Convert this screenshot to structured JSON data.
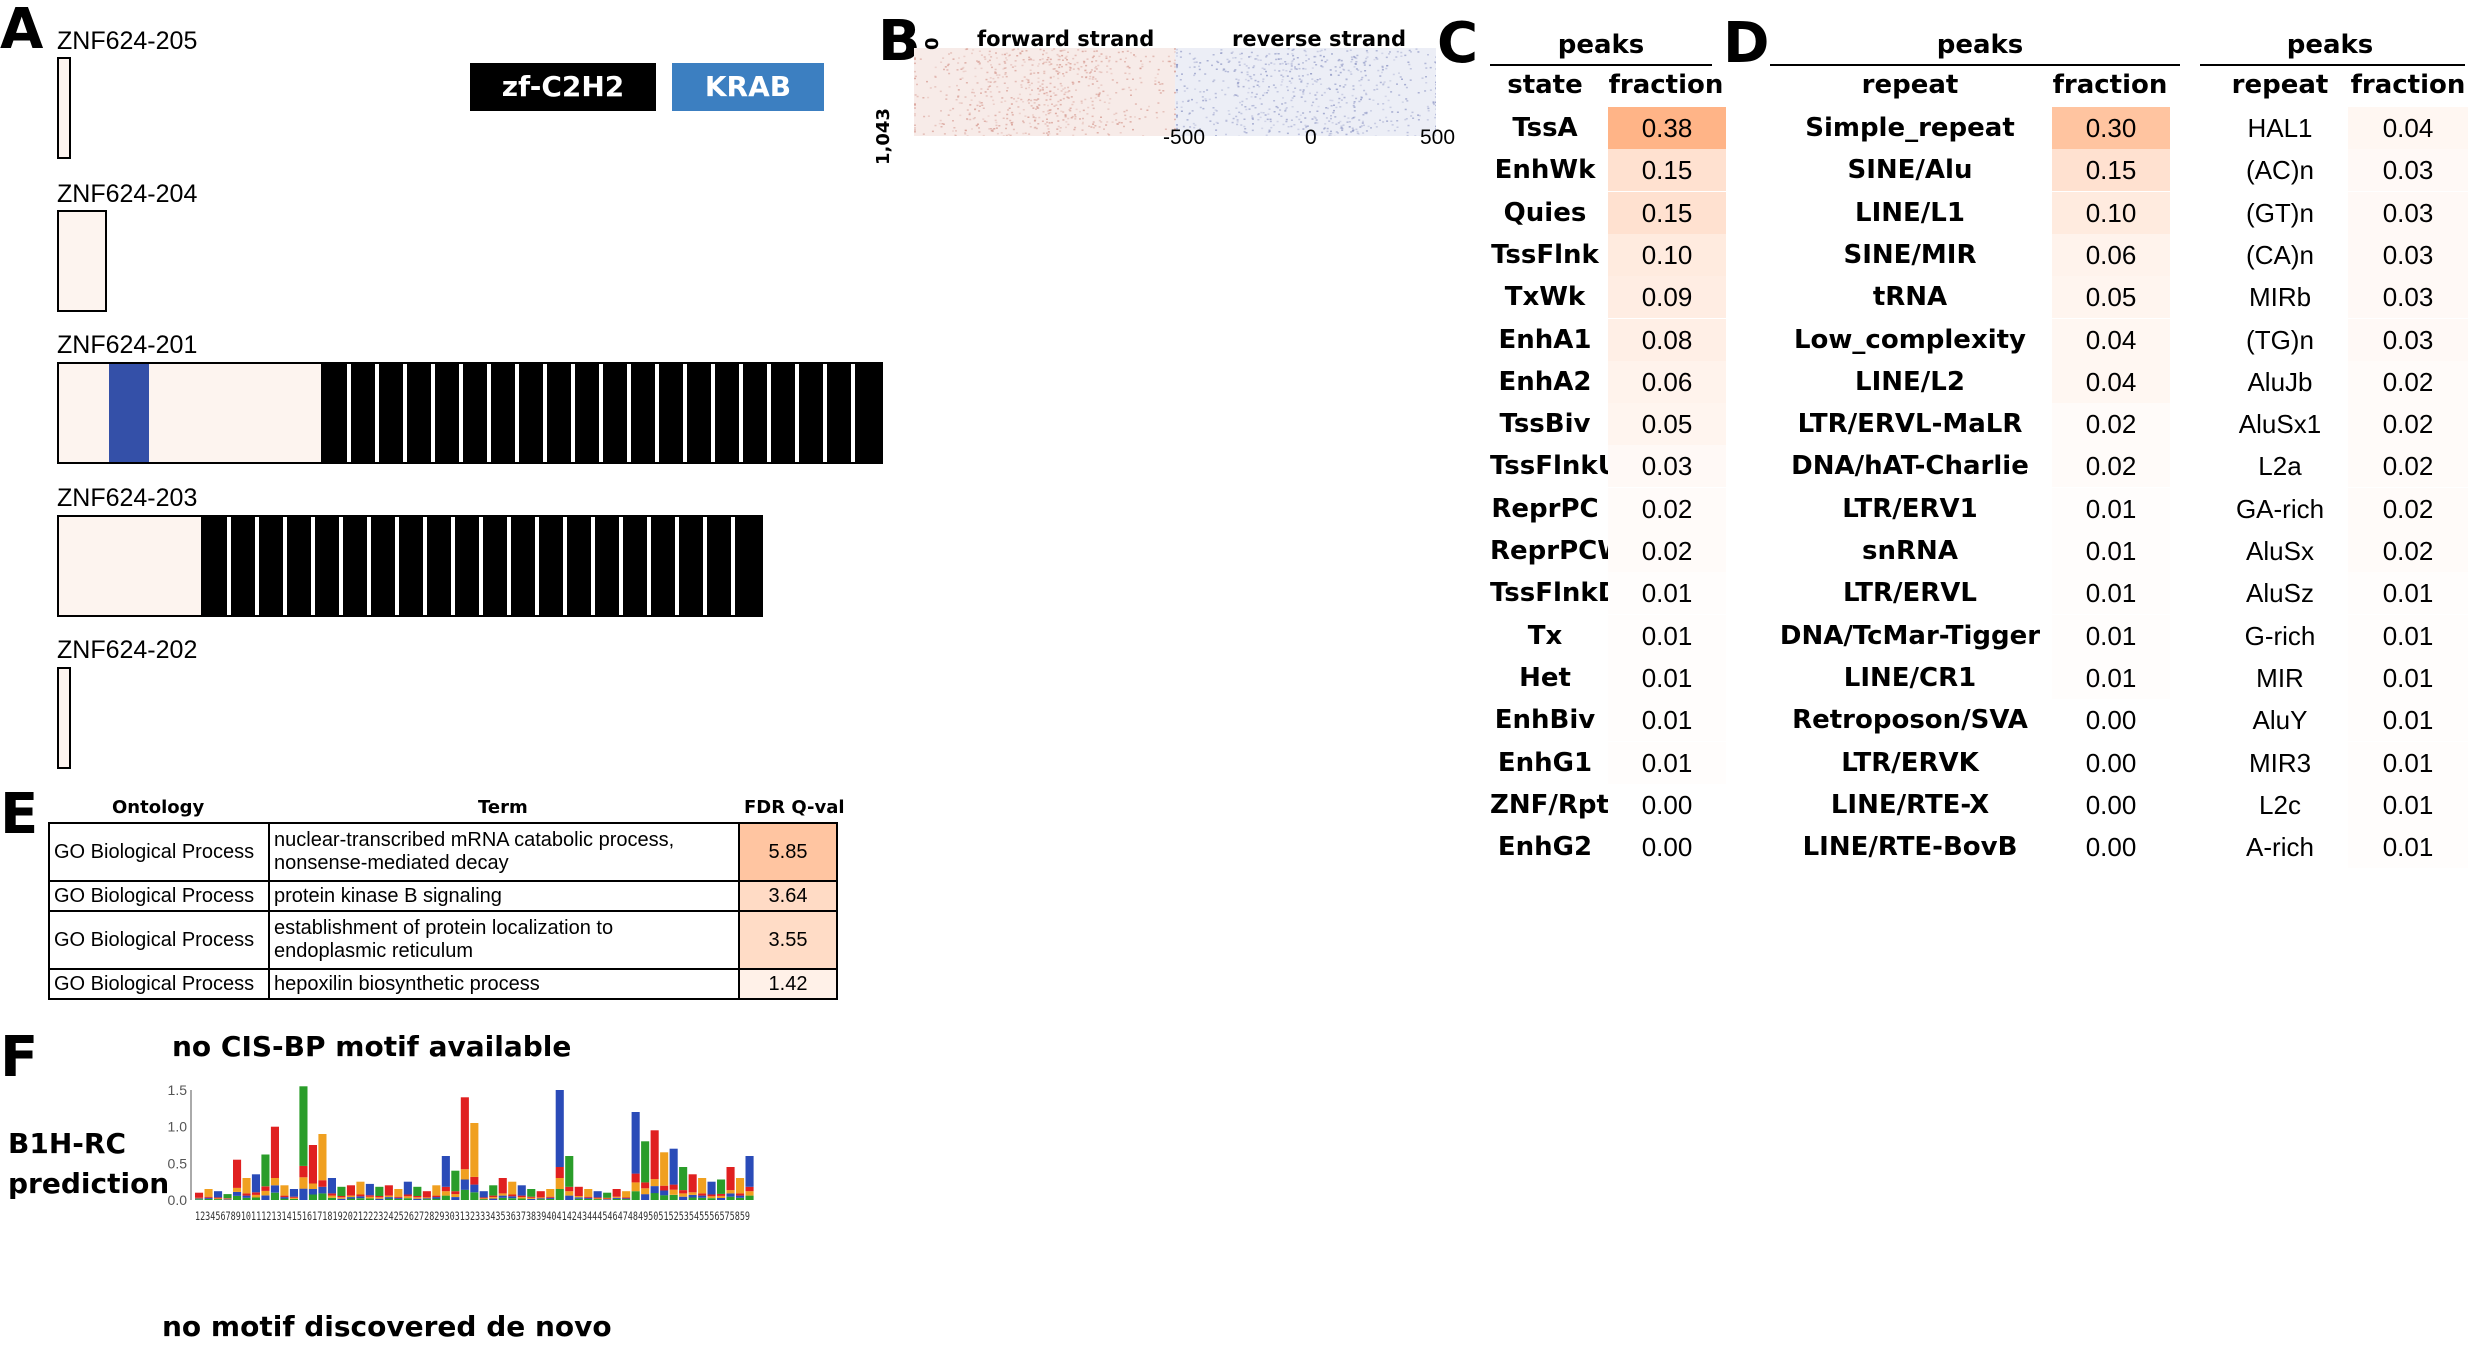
{
  "panels": {
    "A": "A",
    "B": "B",
    "C": "C",
    "D": "D",
    "E": "E",
    "F": "F"
  },
  "panel_a": {
    "isoforms": [
      "ZNF624-205",
      "ZNF624-204",
      "ZNF624-201",
      "ZNF624-203",
      "ZNF624-202"
    ],
    "legend": {
      "zf": "zf-C2H2",
      "krab": "KRAB"
    },
    "colors": {
      "zf": "#000000",
      "krab": "#3450a8",
      "body": "#fdf4ef",
      "krab_legend": "#3c7fc1"
    }
  },
  "panel_b": {
    "forward_label": "forward strand",
    "reverse_label": "reverse strand",
    "y_top": "0",
    "y_bottom": "1,043",
    "x_ticks": [
      "-500",
      "0",
      "500"
    ],
    "colors": {
      "forward": "#d4968c",
      "reverse": "#8e96c4"
    }
  },
  "panel_c": {
    "header": "peaks",
    "col_state": "state",
    "col_fraction": "fraction",
    "rows": [
      {
        "state": "TssA",
        "fraction": "0.38"
      },
      {
        "state": "EnhWk",
        "fraction": "0.15"
      },
      {
        "state": "Quies",
        "fraction": "0.15"
      },
      {
        "state": "TssFlnk",
        "fraction": "0.10"
      },
      {
        "state": "TxWk",
        "fraction": "0.09"
      },
      {
        "state": "EnhA1",
        "fraction": "0.08"
      },
      {
        "state": "EnhA2",
        "fraction": "0.06"
      },
      {
        "state": "TssBiv",
        "fraction": "0.05"
      },
      {
        "state": "TssFlnkU",
        "fraction": "0.03"
      },
      {
        "state": "ReprPC",
        "fraction": "0.02"
      },
      {
        "state": "ReprPCWk",
        "fraction": "0.02"
      },
      {
        "state": "TssFlnkD",
        "fraction": "0.01"
      },
      {
        "state": "Tx",
        "fraction": "0.01"
      },
      {
        "state": "Het",
        "fraction": "0.01"
      },
      {
        "state": "EnhBiv",
        "fraction": "0.01"
      },
      {
        "state": "EnhG1",
        "fraction": "0.01"
      },
      {
        "state": "ZNF/Rpts",
        "fraction": "0.00"
      },
      {
        "state": "EnhG2",
        "fraction": "0.00"
      }
    ]
  },
  "panel_d": {
    "header_left": "peaks",
    "header_right": "peaks",
    "col_repeat": "repeat",
    "col_fraction": "fraction",
    "left_rows": [
      {
        "repeat": "Simple_repeat",
        "fraction": "0.30"
      },
      {
        "repeat": "SINE/Alu",
        "fraction": "0.15"
      },
      {
        "repeat": "LINE/L1",
        "fraction": "0.10"
      },
      {
        "repeat": "SINE/MIR",
        "fraction": "0.06"
      },
      {
        "repeat": "tRNA",
        "fraction": "0.05"
      },
      {
        "repeat": "Low_complexity",
        "fraction": "0.04"
      },
      {
        "repeat": "LINE/L2",
        "fraction": "0.04"
      },
      {
        "repeat": "LTR/ERVL-MaLR",
        "fraction": "0.02"
      },
      {
        "repeat": "DNA/hAT-Charlie",
        "fraction": "0.02"
      },
      {
        "repeat": "LTR/ERV1",
        "fraction": "0.01"
      },
      {
        "repeat": "snRNA",
        "fraction": "0.01"
      },
      {
        "repeat": "LTR/ERVL",
        "fraction": "0.01"
      },
      {
        "repeat": "DNA/TcMar-Tigger",
        "fraction": "0.01"
      },
      {
        "repeat": "LINE/CR1",
        "fraction": "0.01"
      },
      {
        "repeat": "Retroposon/SVA",
        "fraction": "0.00"
      },
      {
        "repeat": "LTR/ERVK",
        "fraction": "0.00"
      },
      {
        "repeat": "LINE/RTE-X",
        "fraction": "0.00"
      },
      {
        "repeat": "LINE/RTE-BovB",
        "fraction": "0.00"
      }
    ],
    "right_rows": [
      {
        "repeat": "HAL1",
        "fraction": "0.04"
      },
      {
        "repeat": "(AC)n",
        "fraction": "0.03"
      },
      {
        "repeat": "(GT)n",
        "fraction": "0.03"
      },
      {
        "repeat": "(CA)n",
        "fraction": "0.03"
      },
      {
        "repeat": "MIRb",
        "fraction": "0.03"
      },
      {
        "repeat": "(TG)n",
        "fraction": "0.03"
      },
      {
        "repeat": "AluJb",
        "fraction": "0.02"
      },
      {
        "repeat": "AluSx1",
        "fraction": "0.02"
      },
      {
        "repeat": "L2a",
        "fraction": "0.02"
      },
      {
        "repeat": "GA-rich",
        "fraction": "0.02"
      },
      {
        "repeat": "AluSx",
        "fraction": "0.02"
      },
      {
        "repeat": "AluSz",
        "fraction": "0.01"
      },
      {
        "repeat": "G-rich",
        "fraction": "0.01"
      },
      {
        "repeat": "MIR",
        "fraction": "0.01"
      },
      {
        "repeat": "AluY",
        "fraction": "0.01"
      },
      {
        "repeat": "MIR3",
        "fraction": "0.01"
      },
      {
        "repeat": "L2c",
        "fraction": "0.01"
      },
      {
        "repeat": "A-rich",
        "fraction": "0.01"
      }
    ]
  },
  "panel_e": {
    "col_ontology": "Ontology",
    "col_term": "Term",
    "col_fdr": "FDR Q-val",
    "rows": [
      {
        "ontology": "GO Biological Process",
        "term_line1": "nuclear-transcribed mRNA catabolic process,",
        "term_line2": "nonsense-mediated decay",
        "fdr": "5.85"
      },
      {
        "ontology": "GO Biological Process",
        "term_line1": "protein kinase B signaling",
        "term_line2": "",
        "fdr": "3.64"
      },
      {
        "ontology": "GO Biological Process",
        "term_line1": "establishment of protein localization to",
        "term_line2": "endoplasmic reticulum",
        "fdr": "3.55"
      },
      {
        "ontology": "GO Biological Process",
        "term_line1": "hepoxilin biosynthetic process",
        "term_line2": "",
        "fdr": "1.42"
      }
    ]
  },
  "panel_f": {
    "cisbp": "no CIS-BP motif available",
    "b1h_line1": "B1H-RC",
    "b1h_line2": "prediction",
    "denovo": "no motif discovered de novo",
    "y_ticks": [
      "0.0",
      "0.5",
      "1.0",
      "1.5"
    ],
    "y_max": 1.5,
    "x_numbers": "1234567891011121314151617181920212223242526272829303132333435363738394041424344454647484950515253545556575859",
    "positions": [
      0.1,
      0.15,
      0.12,
      0.08,
      0.55,
      0.3,
      0.35,
      0.62,
      1.0,
      0.2,
      0.15,
      1.55,
      0.75,
      0.9,
      0.3,
      0.18,
      0.2,
      0.25,
      0.22,
      0.18,
      0.2,
      0.15,
      0.25,
      0.18,
      0.12,
      0.2,
      0.6,
      0.4,
      1.4,
      1.05,
      0.12,
      0.2,
      0.3,
      0.25,
      0.2,
      0.15,
      0.12,
      0.15,
      1.5,
      0.6,
      0.18,
      0.15,
      0.12,
      0.1,
      0.15,
      0.12,
      1.2,
      0.8,
      0.95,
      0.65,
      0.7,
      0.45,
      0.35,
      0.3,
      0.25,
      0.28,
      0.45,
      0.3,
      0.6
    ],
    "base_colors": {
      "A": "#2a9d2a",
      "C": "#2a4bb8",
      "G": "#f0a020",
      "T": "#e02020"
    }
  }
}
